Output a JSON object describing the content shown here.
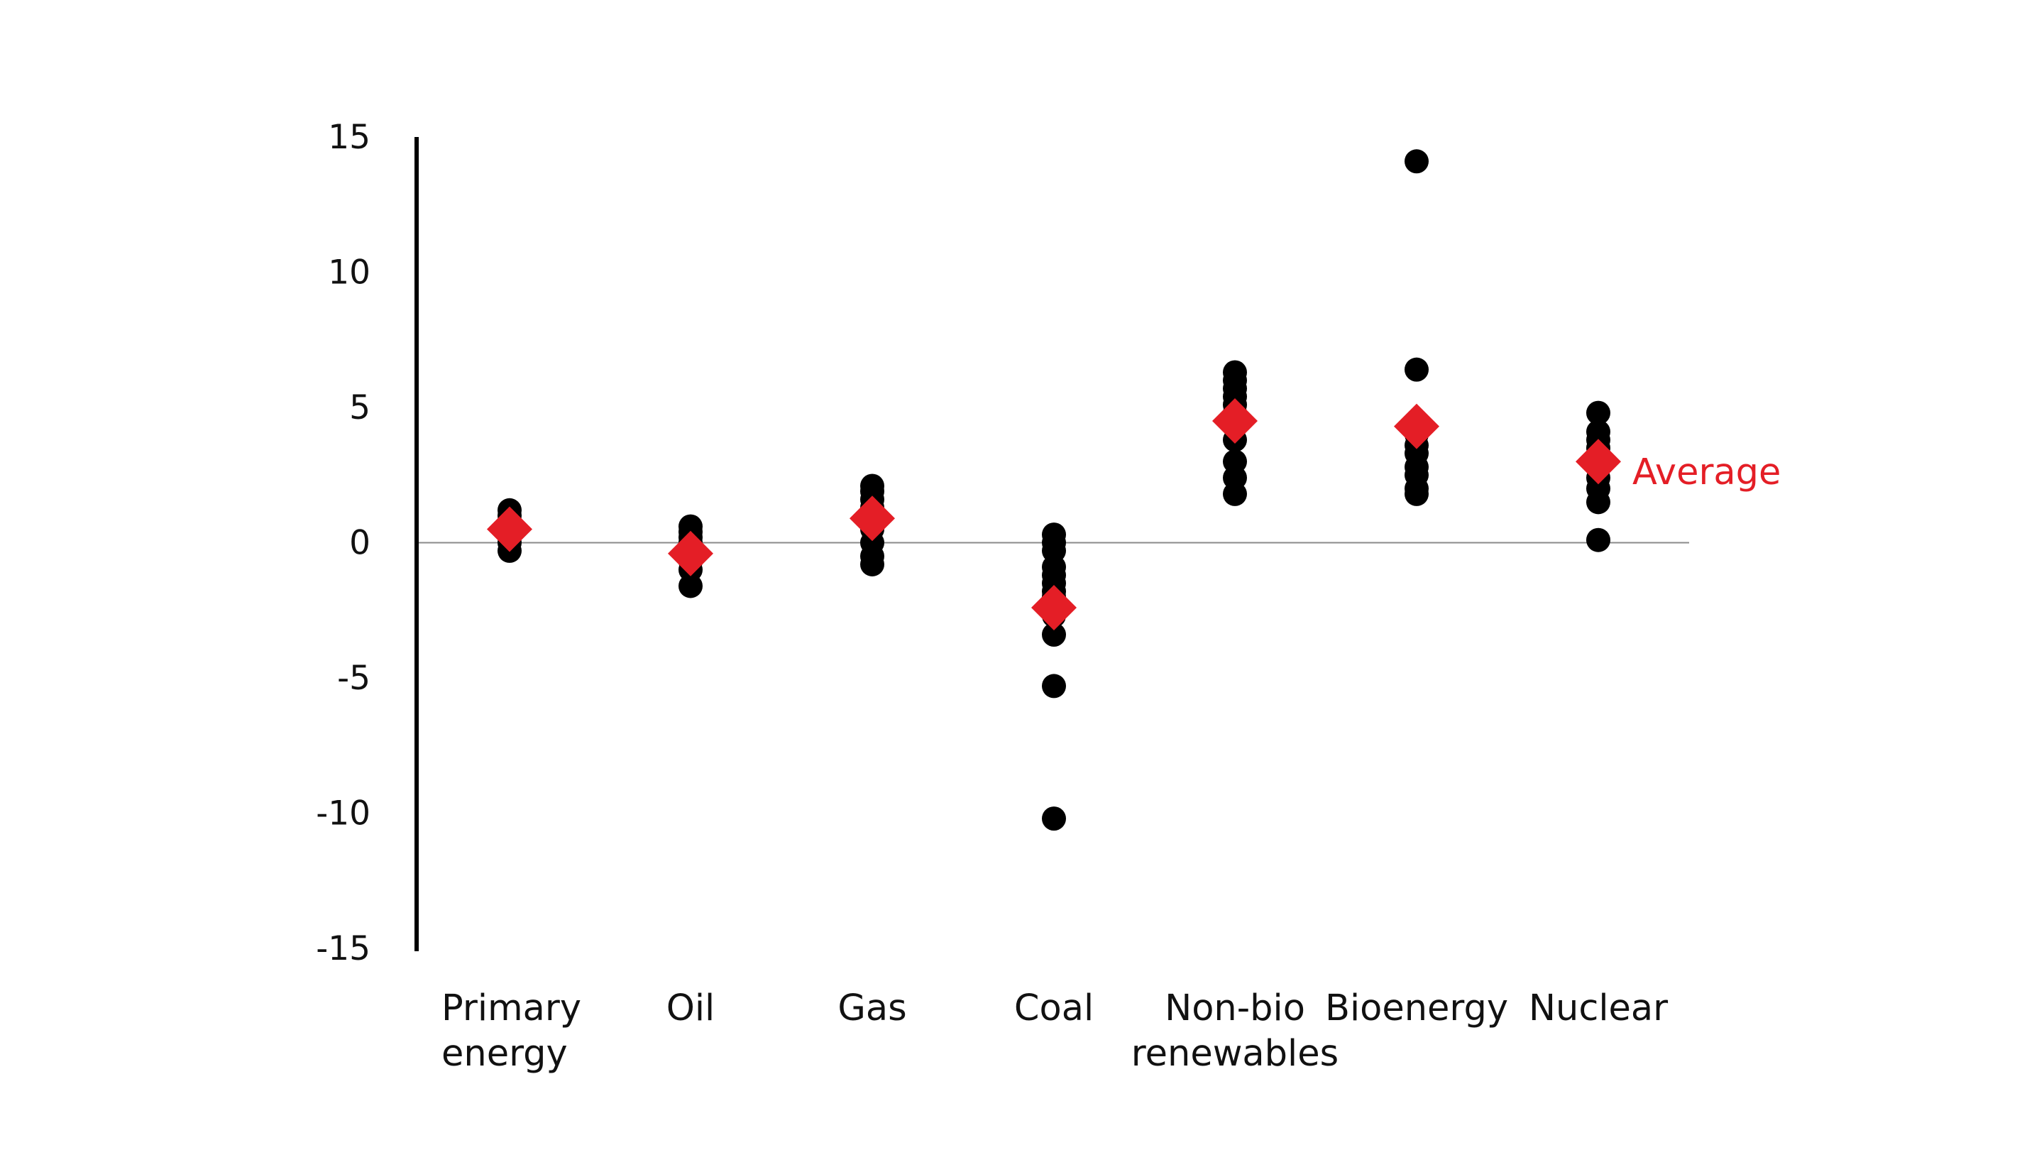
{
  "chart_data": {
    "type": "scatter",
    "title": "",
    "xlabel": "",
    "ylabel": "",
    "ylim": [
      -15,
      15
    ],
    "yticks": [
      15,
      10,
      5,
      0,
      -5,
      -10,
      -15
    ],
    "ytick_labels": [
      "15",
      "10",
      "5",
      "0",
      "-5",
      "-10",
      "-15"
    ],
    "grid": false,
    "zero_line": true,
    "categories": [
      [
        "Primary",
        "energy"
      ],
      [
        "Oil"
      ],
      [
        "Gas"
      ],
      [
        "Coal"
      ],
      [
        "Non-bio",
        "renewables"
      ],
      [
        "Bioenergy"
      ],
      [
        "Nuclear"
      ]
    ],
    "series": [
      {
        "name": "",
        "marker": "circle",
        "color": "#000000",
        "values": [
          [
            1.2,
            1.0,
            0.8,
            0.6,
            0.4,
            0.2,
            0.0,
            -0.3
          ],
          [
            0.6,
            0.4,
            0.2,
            0.0,
            -0.4,
            -0.7,
            -1.0,
            -1.6
          ],
          [
            2.1,
            1.9,
            1.6,
            1.3,
            1.0,
            0.5,
            0.0,
            -0.5,
            -0.8
          ],
          [
            0.3,
            0.0,
            -0.3,
            -0.9,
            -1.2,
            -1.5,
            -1.8,
            -2.0,
            -2.4,
            -2.7,
            -3.4,
            -5.3,
            -10.2
          ],
          [
            6.3,
            6.0,
            5.7,
            5.4,
            5.1,
            4.8,
            4.3,
            3.8,
            3.0,
            2.4,
            1.8
          ],
          [
            14.1,
            6.4,
            4.0,
            3.6,
            3.3,
            2.8,
            2.5,
            2.0,
            1.8
          ],
          [
            4.8,
            4.1,
            3.8,
            3.5,
            3.2,
            2.9,
            2.4,
            2.0,
            1.5,
            0.1
          ]
        ]
      },
      {
        "name": "Average",
        "marker": "diamond",
        "color": "#e41e26",
        "values": [
          0.5,
          -0.4,
          0.9,
          -2.4,
          4.5,
          4.3,
          3.0
        ]
      }
    ],
    "legend": {
      "placement": "right of last category average",
      "label": "Average"
    }
  }
}
